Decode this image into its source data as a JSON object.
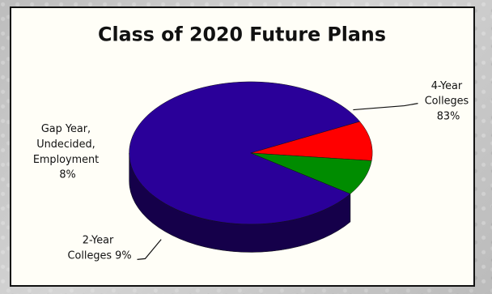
{
  "chart_data": {
    "type": "pie",
    "title": "Class of 2020 Future Plans",
    "values": [
      83,
      9,
      8
    ],
    "slices": [
      {
        "label": "4-Year Colleges",
        "value": 83,
        "display_lines": [
          "4-Year",
          "Colleges",
          "83%"
        ],
        "color": "#2a0099",
        "side_color": "#15004a"
      },
      {
        "label": "2-Year Colleges",
        "value": 9,
        "display_lines": [
          "2-Year",
          "Colleges 9%"
        ],
        "color": "#ff0000",
        "side_color": "#a80000"
      },
      {
        "label": "Gap Year, Undecided, Employment",
        "value": 8,
        "display_lines": [
          "Gap Year,",
          "Undecided,",
          "Employment",
          "8%"
        ],
        "color": "#008c00",
        "side_color": "#005800"
      }
    ]
  }
}
